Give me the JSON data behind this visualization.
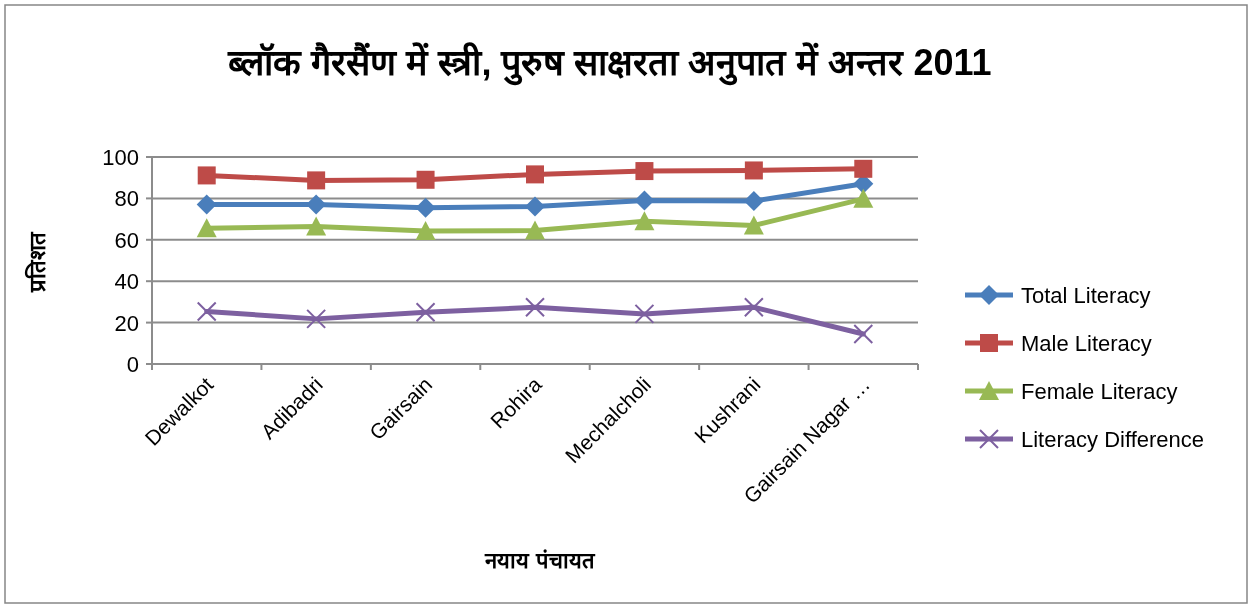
{
  "chart_data": {
    "type": "line",
    "title": "ब्लॉक गैरसैंण में स्त्री, पुरुष साक्षरता अनुपात में अन्तर 2011",
    "xlabel": "नयाय पंचायत",
    "ylabel": "प्रतिशत",
    "categories": [
      "Dewalkot",
      "Adibadri",
      "Gairsain",
      "Rohira",
      "Mechalcholi",
      "Kushrani",
      "Gairsain Nagar …"
    ],
    "series": [
      {
        "name": "Total Literacy",
        "color": "#4a7ebb",
        "marker": "diamond",
        "values": [
          77.1,
          77.1,
          75.5,
          76.1,
          79.0,
          78.7,
          87.1
        ]
      },
      {
        "name": "Male Literacy",
        "color": "#be4b48",
        "marker": "square",
        "values": [
          91.1,
          88.7,
          89.0,
          91.6,
          93.2,
          93.5,
          94.3
        ]
      },
      {
        "name": "Female Literacy",
        "color": "#98b954",
        "marker": "triangle",
        "values": [
          65.6,
          66.4,
          64.2,
          64.5,
          69.0,
          66.9,
          79.8
        ]
      },
      {
        "name": "Literacy Difference",
        "color": "#7d60a0",
        "marker": "cross",
        "values": [
          25.4,
          21.8,
          25.0,
          27.4,
          24.2,
          27.4,
          14.5
        ]
      }
    ],
    "ylim": [
      0,
      100
    ],
    "yticks": [
      0,
      20,
      40,
      60,
      80,
      100
    ],
    "grid": "y",
    "legend": "right"
  }
}
